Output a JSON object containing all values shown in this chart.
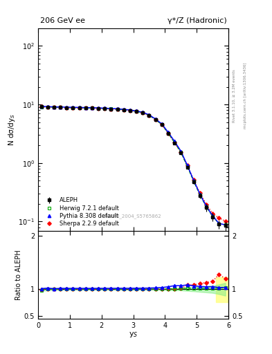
{
  "title_left": "206 GeV ee",
  "title_right": "γ*/Z (Hadronic)",
  "ylabel_main": "N dσ/dy$_S$",
  "ylabel_ratio": "Ratio to ALEPH",
  "xlabel": "y$_S$",
  "right_label_top": "Rivet 3.1.10, ≥ 3.2M events",
  "right_label_bottom": "mcplots.cern.ch [arXiv:1306.3436]",
  "watermark": "ALEPH_2004_S5765862",
  "xlim": [
    0,
    6
  ],
  "ylim_main": [
    0.07,
    200
  ],
  "ylim_ratio": [
    0.45,
    2.1
  ],
  "aleph_x": [
    0.1,
    0.3,
    0.5,
    0.7,
    0.9,
    1.1,
    1.3,
    1.5,
    1.7,
    1.9,
    2.1,
    2.3,
    2.5,
    2.7,
    2.9,
    3.1,
    3.3,
    3.5,
    3.7,
    3.9,
    4.1,
    4.3,
    4.5,
    4.7,
    4.9,
    5.1,
    5.3,
    5.5,
    5.7,
    5.9
  ],
  "aleph_y": [
    9.2,
    9.0,
    9.0,
    8.9,
    8.85,
    8.8,
    8.75,
    8.7,
    8.65,
    8.6,
    8.5,
    8.4,
    8.3,
    8.1,
    7.9,
    7.6,
    7.2,
    6.5,
    5.5,
    4.5,
    3.2,
    2.2,
    1.5,
    0.85,
    0.48,
    0.28,
    0.175,
    0.12,
    0.09,
    0.085
  ],
  "aleph_yerr": [
    0.15,
    0.12,
    0.12,
    0.11,
    0.11,
    0.11,
    0.1,
    0.1,
    0.1,
    0.1,
    0.1,
    0.09,
    0.09,
    0.09,
    0.08,
    0.08,
    0.08,
    0.07,
    0.07,
    0.07,
    0.06,
    0.06,
    0.06,
    0.05,
    0.04,
    0.03,
    0.025,
    0.02,
    0.015,
    0.015
  ],
  "herwig_y": [
    9.0,
    9.05,
    9.0,
    8.92,
    8.87,
    8.82,
    8.77,
    8.72,
    8.67,
    8.62,
    8.52,
    8.42,
    8.32,
    8.12,
    7.92,
    7.62,
    7.22,
    6.52,
    5.52,
    4.52,
    3.22,
    2.22,
    1.52,
    0.87,
    0.49,
    0.285,
    0.178,
    0.122,
    0.092,
    0.088
  ],
  "pythia_y": [
    9.3,
    9.2,
    9.1,
    9.05,
    9.0,
    8.95,
    8.9,
    8.85,
    8.8,
    8.75,
    8.65,
    8.55,
    8.45,
    8.25,
    8.05,
    7.75,
    7.35,
    6.65,
    5.65,
    4.65,
    3.35,
    2.35,
    1.6,
    0.92,
    0.51,
    0.295,
    0.183,
    0.126,
    0.093,
    0.088
  ],
  "sherpa_y": [
    9.15,
    9.05,
    9.0,
    8.9,
    8.85,
    8.8,
    8.75,
    8.7,
    8.65,
    8.6,
    8.5,
    8.4,
    8.3,
    8.1,
    7.9,
    7.6,
    7.2,
    6.5,
    5.5,
    4.5,
    3.22,
    2.22,
    1.52,
    0.92,
    0.52,
    0.31,
    0.197,
    0.138,
    0.115,
    0.102
  ],
  "aleph_color": "#000000",
  "herwig_color": "#00aa00",
  "pythia_color": "#0000ff",
  "sherpa_color": "#ff0000",
  "herwig_ratio": [
    0.978,
    1.006,
    1.0,
    1.003,
    1.002,
    1.002,
    1.002,
    1.002,
    1.002,
    1.002,
    1.002,
    1.002,
    1.002,
    1.002,
    1.003,
    1.003,
    1.003,
    1.003,
    1.004,
    1.004,
    1.006,
    1.009,
    1.013,
    1.024,
    1.021,
    1.018,
    1.017,
    1.017,
    1.022,
    1.035
  ],
  "pythia_ratio": [
    1.011,
    1.022,
    1.011,
    1.017,
    1.017,
    1.017,
    1.017,
    1.017,
    1.017,
    1.017,
    1.018,
    1.018,
    1.018,
    1.019,
    1.019,
    1.02,
    1.021,
    1.023,
    1.027,
    1.033,
    1.047,
    1.068,
    1.067,
    1.082,
    1.063,
    1.054,
    1.046,
    1.05,
    1.033,
    1.035
  ],
  "sherpa_ratio": [
    0.995,
    1.006,
    1.0,
    1.0,
    1.0,
    1.0,
    1.0,
    1.0,
    1.0,
    1.0,
    1.0,
    1.0,
    1.0,
    1.0,
    1.0,
    1.0,
    1.0,
    1.0,
    1.0,
    1.0,
    1.006,
    1.009,
    1.013,
    1.082,
    1.083,
    1.107,
    1.126,
    1.15,
    1.278,
    1.2
  ],
  "green_band_y1": [
    0.97,
    0.98,
    0.985,
    0.99,
    0.99,
    0.99,
    0.99,
    0.99,
    0.99,
    0.99,
    0.99,
    0.99,
    0.99,
    0.99,
    0.99,
    0.99,
    0.99,
    0.99,
    0.99,
    0.99,
    0.985,
    0.982,
    0.98,
    0.97,
    0.962,
    0.952,
    0.942,
    0.932,
    0.91,
    0.88
  ],
  "green_band_y2": [
    1.03,
    1.02,
    1.015,
    1.01,
    1.01,
    1.01,
    1.01,
    1.01,
    1.01,
    1.01,
    1.01,
    1.01,
    1.01,
    1.01,
    1.01,
    1.01,
    1.01,
    1.01,
    1.01,
    1.01,
    1.015,
    1.018,
    1.02,
    1.03,
    1.038,
    1.048,
    1.058,
    1.068,
    1.09,
    1.12
  ],
  "yellow_xstart": 5.6,
  "yellow_xend": 6.05,
  "yellow_y1": 0.76,
  "yellow_y2": 1.22
}
